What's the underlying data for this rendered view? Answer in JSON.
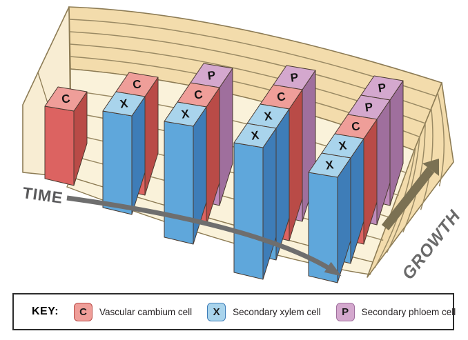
{
  "diagram": {
    "time_label": "TIME",
    "growth_label": "GROWTH",
    "groups": [
      {
        "cells": [
          "C"
        ]
      },
      {
        "cells": [
          "C",
          "X"
        ]
      },
      {
        "cells": [
          "P",
          "C",
          "X"
        ]
      },
      {
        "cells": [
          "P",
          "C",
          "X",
          "X"
        ]
      },
      {
        "cells": [
          "P",
          "P",
          "C",
          "X",
          "X"
        ]
      }
    ],
    "cell_colors": {
      "C": {
        "top": "#EF9E99",
        "front": "#DC6361",
        "side": "#B94B47"
      },
      "X": {
        "top": "#A9D4EC",
        "front": "#5FA7DB",
        "side": "#3E7DB8"
      },
      "P": {
        "top": "#D4A8CE",
        "front": "#BE8ABB",
        "side": "#9F6F9D"
      }
    },
    "slab_colors": {
      "band": "#F3DCAC",
      "floor": "#FAF2DA",
      "cut": "#F8EDD3",
      "line": "#9A8A64",
      "outline": "#8D7C55"
    },
    "arrow_colors": {
      "time": "#6E6E6E",
      "growth": "#7B7153"
    }
  },
  "key": {
    "title": "KEY:",
    "items": [
      {
        "symbol": "C",
        "label": "Vascular cambium cell",
        "fill": "#EF9E99",
        "border": "#B94B47"
      },
      {
        "symbol": "X",
        "label": "Secondary xylem cell",
        "fill": "#A9D4EC",
        "border": "#3E7DB8"
      },
      {
        "symbol": "P",
        "label": "Secondary phloem cell",
        "fill": "#D4A8CE",
        "border": "#9F6F9D"
      }
    ]
  }
}
